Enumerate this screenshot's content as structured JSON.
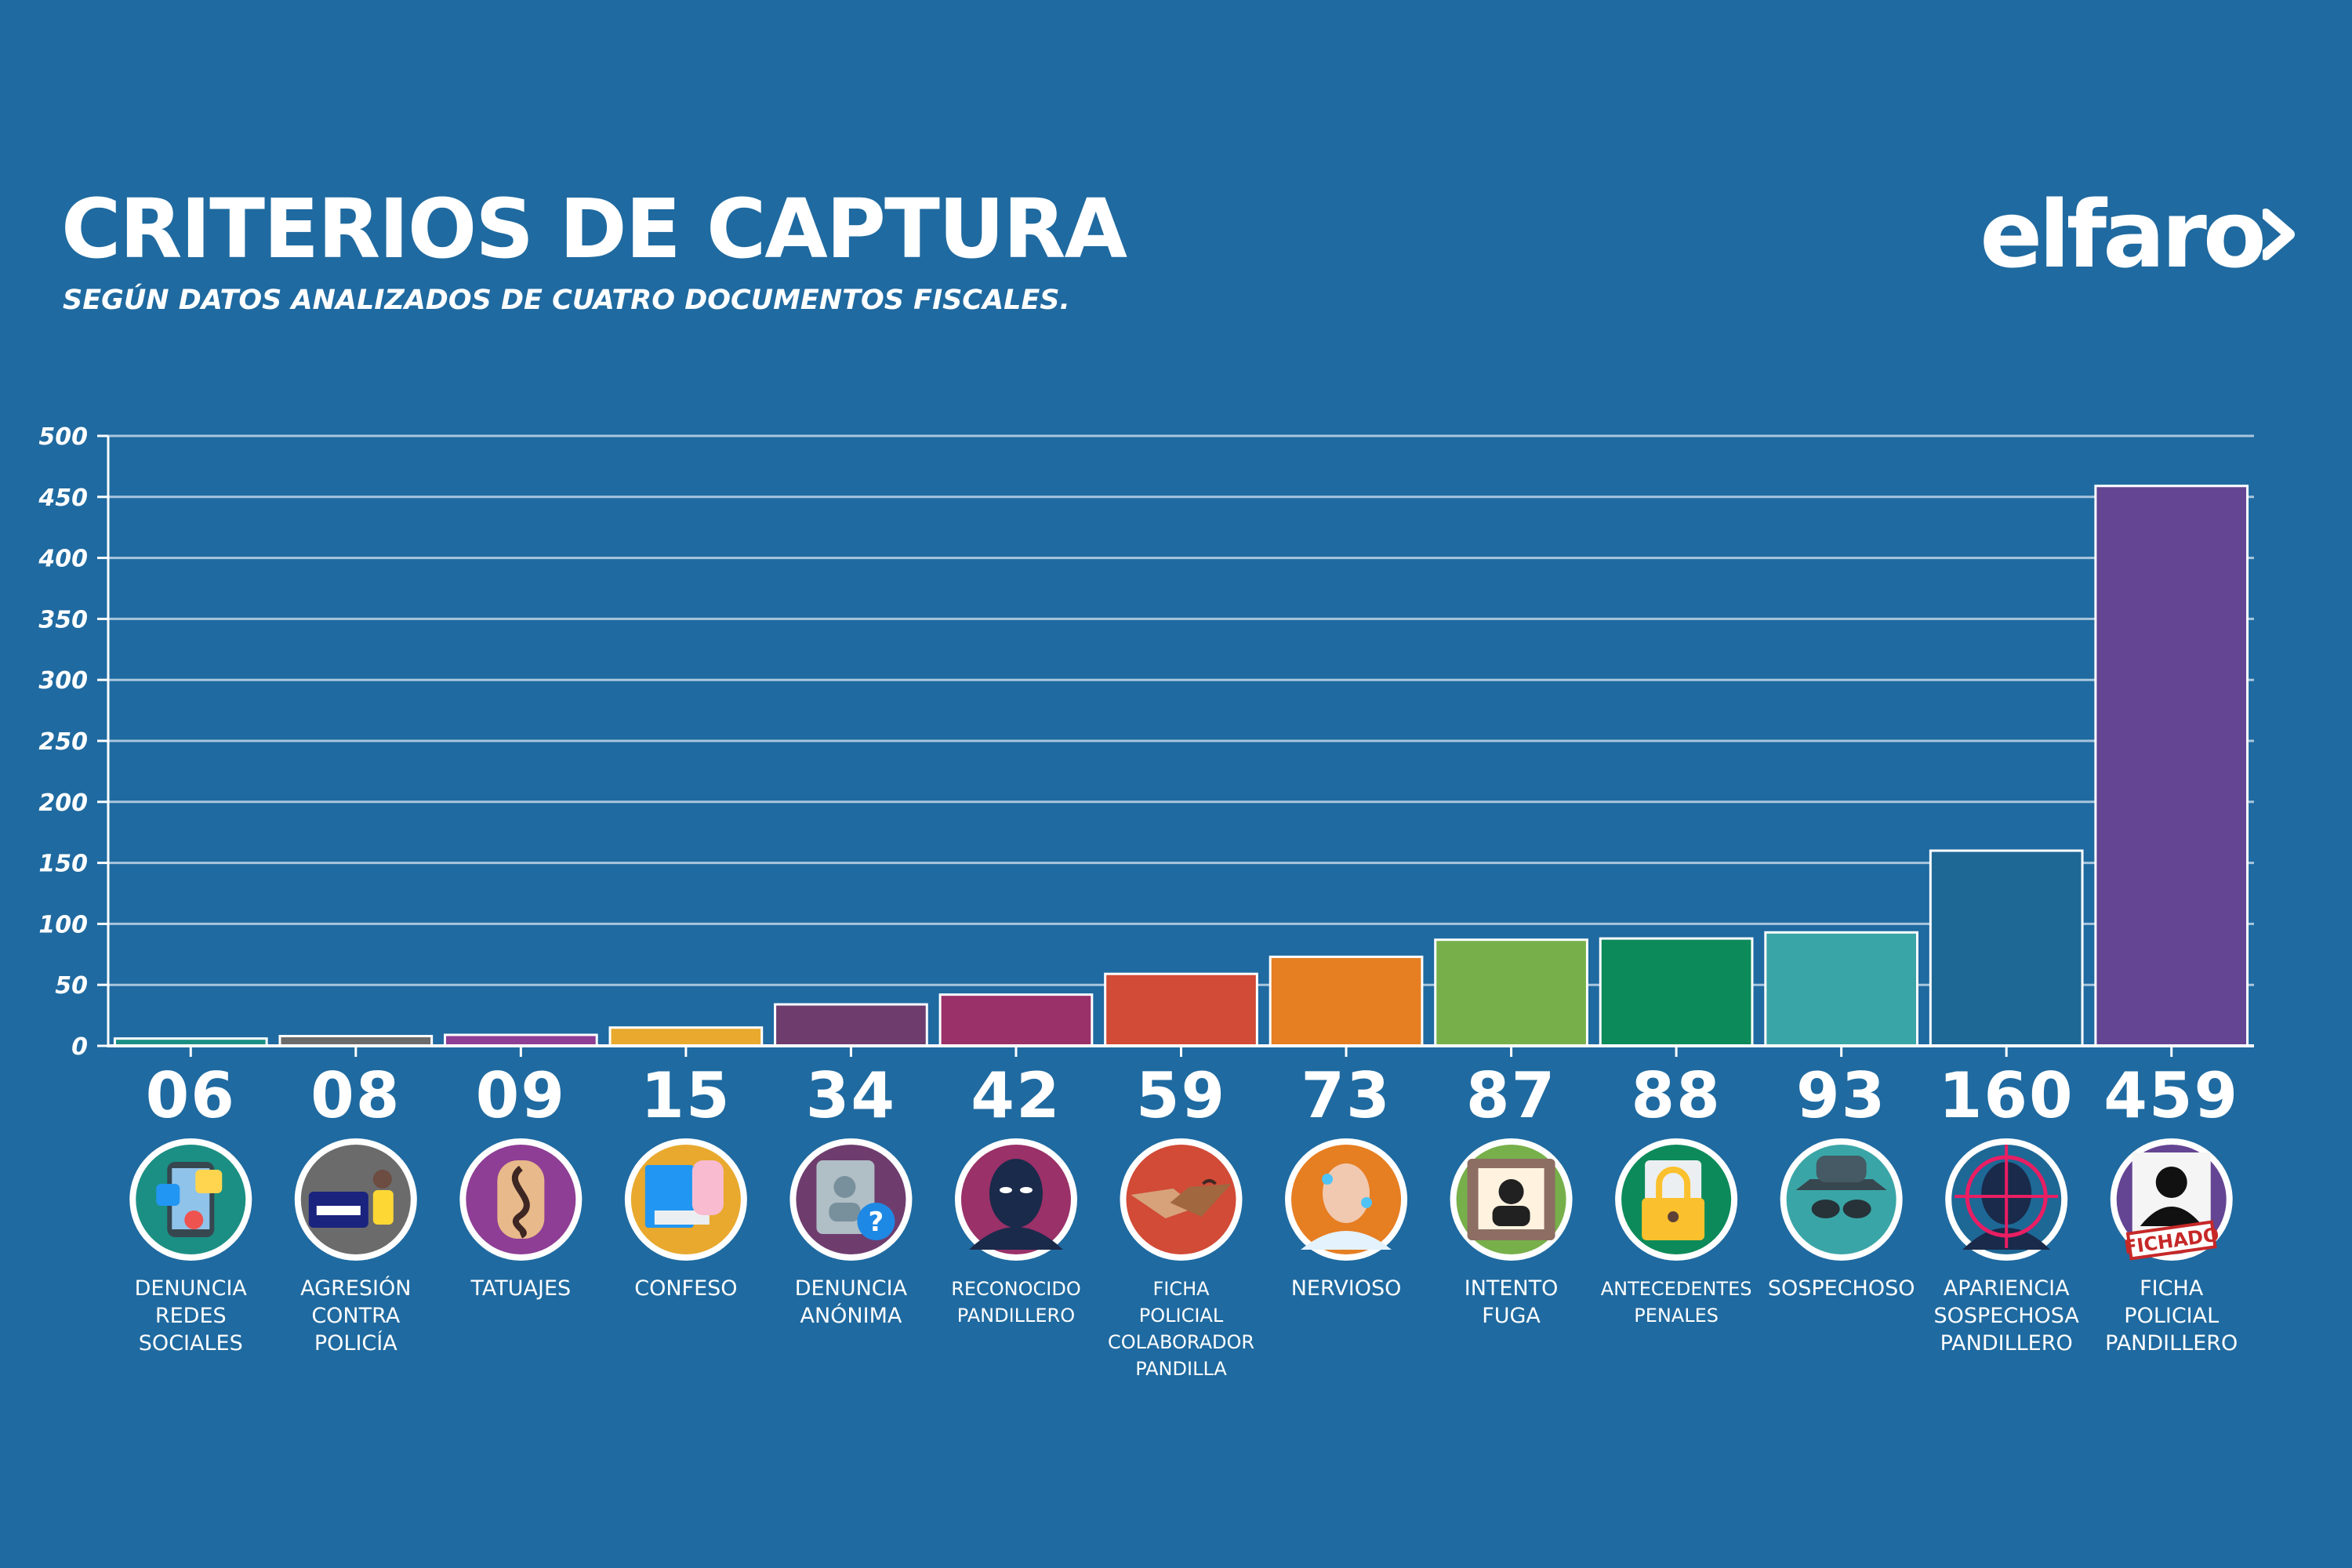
{
  "header": {
    "title": "CRITERIOS DE CAPTURA",
    "subtitle": "SEGÚN DATOS ANALIZADOS DE CUATRO DOCUMENTOS FISCALES.",
    "logo": "elfaro"
  },
  "colors": {
    "background": "#1f6aa0",
    "gridline": "#a9c6dd",
    "text": "#ffffff"
  },
  "chart_data": {
    "type": "bar",
    "title": "CRITERIOS DE CAPTURA",
    "subtitle": "SEGÚN DATOS ANALIZADOS DE CUATRO DOCUMENTOS FISCALES.",
    "xlabel": "",
    "ylabel": "",
    "ylim": [
      0,
      500
    ],
    "yticks": [
      "0",
      "50",
      "100",
      "150",
      "200",
      "250",
      "300",
      "350",
      "400",
      "450",
      "500"
    ],
    "grid": true,
    "legend": "none",
    "categories": [
      {
        "label": [
          "DENUNCIA",
          "REDES",
          "SOCIALES"
        ],
        "value": 6,
        "display": "06",
        "color": "#1b8f83",
        "icon": "social-media-icon"
      },
      {
        "label": [
          "AGRESIÓN",
          "CONTRA",
          "POLICÍA"
        ],
        "value": 8,
        "display": "08",
        "color": "#6b6b6b",
        "icon": "police-aggression-icon"
      },
      {
        "label": [
          "TATUAJES"
        ],
        "value": 9,
        "display": "09",
        "color": "#8e3e95",
        "icon": "tattoo-icon"
      },
      {
        "label": [
          "CONFESO"
        ],
        "value": 15,
        "display": "15",
        "color": "#e8a92e",
        "icon": "confession-icon"
      },
      {
        "label": [
          "DENUNCIA",
          "ANÓNIMA"
        ],
        "value": 34,
        "display": "34",
        "color": "#6e3d6e",
        "icon": "anonymous-report-icon"
      },
      {
        "label": [
          "RECONOCIDO",
          "PANDILLERO"
        ],
        "value": 42,
        "display": "42",
        "color": "#9a3168",
        "icon": "masked-person-icon",
        "small": true
      },
      {
        "label": [
          "FICHA",
          "POLICIAL",
          "COLABORADOR",
          "PANDILLA"
        ],
        "value": 59,
        "display": "59",
        "color": "#d14b37",
        "icon": "handshake-icon",
        "small": true
      },
      {
        "label": [
          "NERVIOSO"
        ],
        "value": 73,
        "display": "73",
        "color": "#e67e22",
        "icon": "nervous-person-icon"
      },
      {
        "label": [
          "INTENTO",
          "FUGA"
        ],
        "value": 87,
        "display": "87",
        "color": "#77b04a",
        "icon": "escape-attempt-icon"
      },
      {
        "label": [
          "ANTECEDENTES",
          "PENALES"
        ],
        "value": 88,
        "display": "88",
        "color": "#0c8a5a",
        "icon": "criminal-record-icon",
        "small": true
      },
      {
        "label": [
          "SOSPECHOSO"
        ],
        "value": 93,
        "display": "93",
        "color": "#3aa5a6",
        "icon": "suspect-icon"
      },
      {
        "label": [
          "APARIENCIA",
          "SOSPECHOSA",
          "PANDILLERO"
        ],
        "value": 160,
        "display": "160",
        "color": "#1e6896",
        "icon": "target-person-icon"
      },
      {
        "label": [
          "FICHA",
          "POLICIAL",
          "PANDILLERO"
        ],
        "value": 459,
        "display": "459",
        "color": "#644593",
        "icon": "mugshot-icon",
        "badge": "FICHADO"
      }
    ]
  }
}
